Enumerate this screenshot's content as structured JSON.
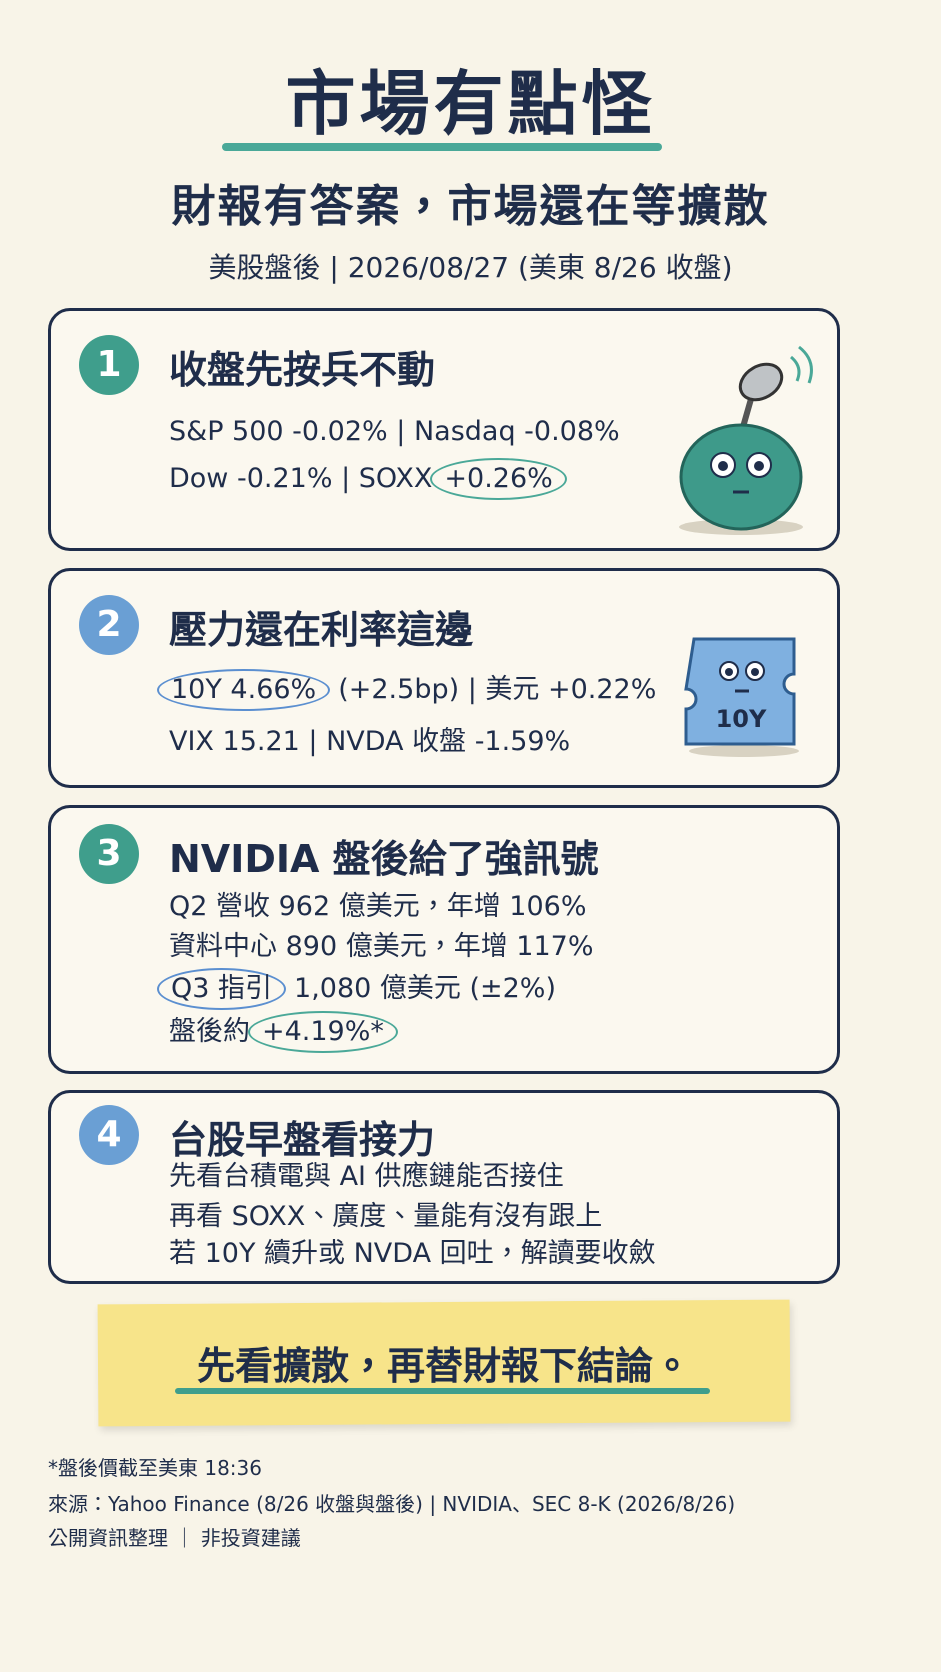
{
  "header": {
    "title": "市場有點怪",
    "subtitle": "財報有答案，市場還在等擴散",
    "dateline": "美股盤後 | 2026/08/27 (美東 8/26 收盤)"
  },
  "sections": [
    {
      "number": "1",
      "heading": "收盤先按兵不動",
      "lines": [
        [
          "S&P 500 -0.02% | Nasdaq -0.08%"
        ],
        [
          "Dow -0.21% | SOXX",
          "+0.26%"
        ]
      ]
    },
    {
      "number": "2",
      "heading": "壓力還在利率這邊",
      "badge": "10Y",
      "lines": [
        [
          "10Y 4.66%",
          "(+2.5bp) | 美元 +0.22%"
        ],
        [
          "VIX 15.21 | NVDA 收盤 -1.59%"
        ]
      ]
    },
    {
      "number": "3",
      "heading": "NVIDIA 盤後給了強訊號",
      "lines": [
        [
          "Q2 營收 962 億美元，年增 106%"
        ],
        [
          "資料中心 890 億美元，年增 117%"
        ],
        [
          "Q3 指引",
          "1,080 億美元 (±2%)"
        ],
        [
          "盤後約",
          "+4.19%*"
        ]
      ]
    },
    {
      "number": "4",
      "heading": "台股早盤看接力",
      "lines": [
        [
          "先看台積電與 AI 供應鏈能否接住"
        ],
        [
          "再看 SOXX、廣度、量能有沒有跟上"
        ],
        [
          "若 10Y 續升或 NVDA 回吐，解讀要收斂"
        ]
      ]
    }
  ],
  "callout": "先看擴散，再替財報下結論。",
  "footer": {
    "note": "*盤後價截至美東 18:36",
    "source": "來源：Yahoo Finance (8/26 收盤與盤後) | NVIDIA、SEC 8-K (2026/8/26)",
    "disclaimer": "公開資訊整理 ｜ 非投資建議"
  }
}
